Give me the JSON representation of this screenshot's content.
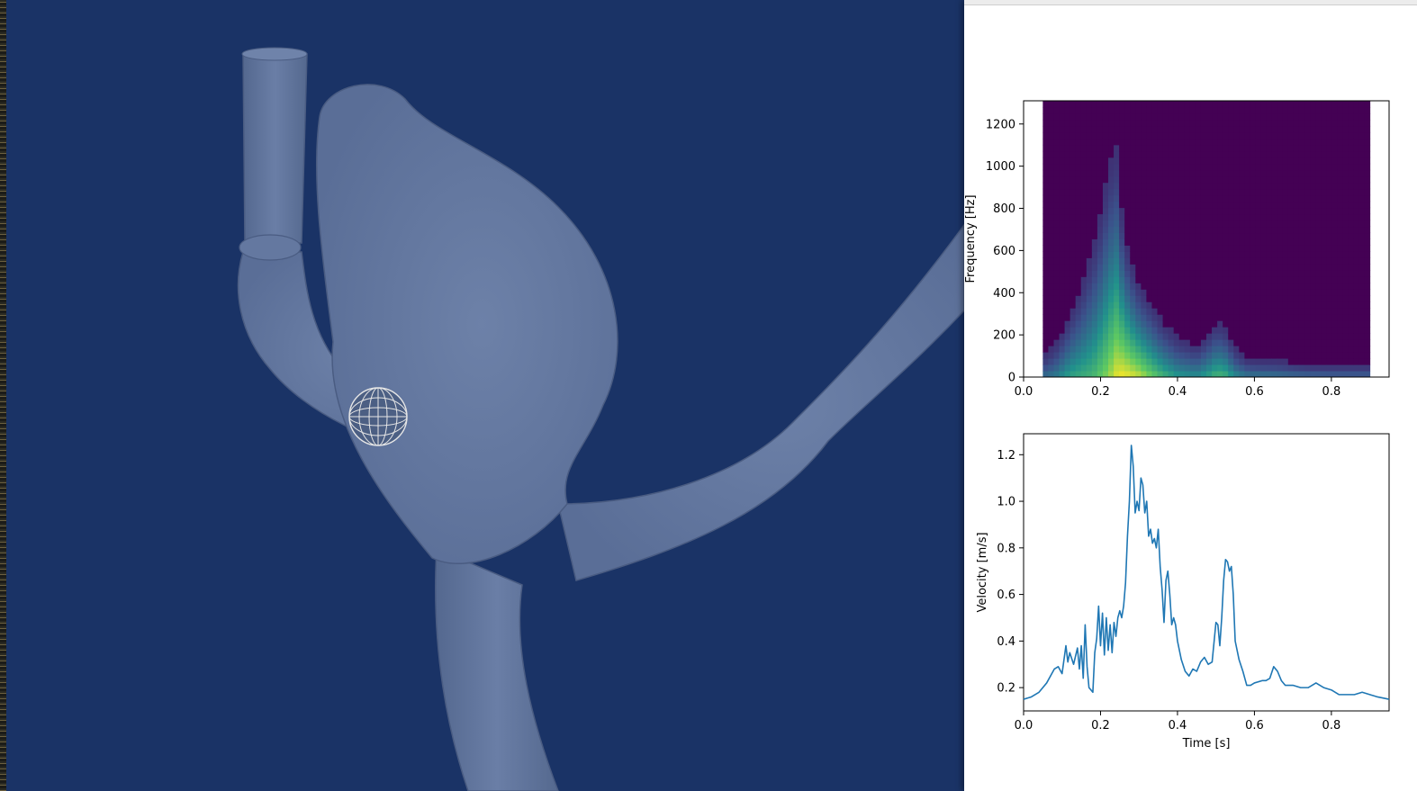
{
  "viewer": {
    "background_color": "#1a3366",
    "surface_color": "#6478a0",
    "probe_widget": "wireframe-sphere"
  },
  "colors": {
    "line": "#1f77b4",
    "spectro_low": "#440154",
    "spectro_mid": "#21918c",
    "spectro_high": "#fde725"
  },
  "chart_data": [
    {
      "type": "heatmap",
      "title": "",
      "xlabel": "",
      "ylabel": "Frequency [Hz]",
      "xlim": [
        0.0,
        0.95
      ],
      "ylim": [
        0,
        1310
      ],
      "data_x_range": [
        0.05,
        0.9
      ],
      "x_ticks": [
        "0.0",
        "0.2",
        "0.4",
        "0.6",
        "0.8"
      ],
      "y_ticks": [
        "0",
        "200",
        "400",
        "600",
        "800",
        "1000",
        "1200"
      ],
      "colormap": "viridis",
      "energy_profile": {
        "t": [
          0.05,
          0.08,
          0.1,
          0.12,
          0.15,
          0.18,
          0.2,
          0.22,
          0.24,
          0.26,
          0.28,
          0.3,
          0.33,
          0.36,
          0.4,
          0.45,
          0.48,
          0.5,
          0.52,
          0.55,
          0.58,
          0.62,
          0.66,
          0.7,
          0.75,
          0.8,
          0.85,
          0.9
        ],
        "max_freq_hz": [
          100,
          150,
          220,
          300,
          430,
          620,
          780,
          1000,
          1120,
          700,
          560,
          450,
          360,
          270,
          190,
          150,
          210,
          260,
          250,
          140,
          90,
          80,
          80,
          70,
          60,
          60,
          60,
          60
        ],
        "intensity": [
          0.25,
          0.3,
          0.4,
          0.5,
          0.55,
          0.6,
          0.7,
          0.8,
          0.95,
          1.0,
          0.95,
          0.9,
          0.75,
          0.6,
          0.45,
          0.4,
          0.5,
          0.6,
          0.6,
          0.4,
          0.3,
          0.3,
          0.28,
          0.25,
          0.22,
          0.2,
          0.2,
          0.2
        ]
      }
    },
    {
      "type": "line",
      "title": "",
      "xlabel": "Time [s]",
      "ylabel": "Velocity [m/s]",
      "xlim": [
        0.0,
        0.95
      ],
      "ylim": [
        0.1,
        1.29
      ],
      "x_ticks": [
        "0.0",
        "0.2",
        "0.4",
        "0.6",
        "0.8"
      ],
      "y_ticks": [
        "0.2",
        "0.4",
        "0.6",
        "0.8",
        "1.0",
        "1.2"
      ],
      "series": [
        {
          "x": [
            0.0,
            0.02,
            0.04,
            0.06,
            0.08,
            0.09,
            0.1,
            0.11,
            0.115,
            0.12,
            0.13,
            0.14,
            0.145,
            0.15,
            0.155,
            0.16,
            0.165,
            0.17,
            0.18,
            0.185,
            0.19,
            0.195,
            0.2,
            0.205,
            0.21,
            0.215,
            0.22,
            0.225,
            0.23,
            0.235,
            0.24,
            0.245,
            0.25,
            0.255,
            0.26,
            0.265,
            0.27,
            0.275,
            0.28,
            0.285,
            0.29,
            0.295,
            0.3,
            0.305,
            0.31,
            0.315,
            0.32,
            0.325,
            0.33,
            0.335,
            0.34,
            0.345,
            0.35,
            0.355,
            0.36,
            0.365,
            0.37,
            0.375,
            0.38,
            0.385,
            0.39,
            0.395,
            0.4,
            0.41,
            0.42,
            0.43,
            0.44,
            0.45,
            0.46,
            0.47,
            0.48,
            0.49,
            0.5,
            0.505,
            0.51,
            0.515,
            0.52,
            0.525,
            0.53,
            0.535,
            0.54,
            0.545,
            0.55,
            0.56,
            0.57,
            0.58,
            0.59,
            0.6,
            0.62,
            0.63,
            0.64,
            0.65,
            0.66,
            0.67,
            0.68,
            0.7,
            0.72,
            0.74,
            0.76,
            0.78,
            0.8,
            0.82,
            0.84,
            0.86,
            0.88,
            0.9,
            0.92,
            0.95
          ],
          "values": [
            0.15,
            0.16,
            0.18,
            0.22,
            0.28,
            0.29,
            0.26,
            0.38,
            0.31,
            0.35,
            0.3,
            0.37,
            0.28,
            0.38,
            0.24,
            0.47,
            0.29,
            0.2,
            0.18,
            0.35,
            0.41,
            0.55,
            0.38,
            0.52,
            0.34,
            0.5,
            0.36,
            0.47,
            0.35,
            0.48,
            0.42,
            0.5,
            0.53,
            0.5,
            0.55,
            0.65,
            0.85,
            1.0,
            1.24,
            1.15,
            0.95,
            1.0,
            0.96,
            1.1,
            1.07,
            0.95,
            1.0,
            0.85,
            0.88,
            0.82,
            0.84,
            0.8,
            0.88,
            0.72,
            0.62,
            0.48,
            0.66,
            0.7,
            0.6,
            0.47,
            0.5,
            0.47,
            0.4,
            0.32,
            0.27,
            0.25,
            0.28,
            0.27,
            0.31,
            0.33,
            0.3,
            0.31,
            0.48,
            0.47,
            0.38,
            0.5,
            0.66,
            0.75,
            0.74,
            0.7,
            0.72,
            0.6,
            0.4,
            0.32,
            0.27,
            0.21,
            0.21,
            0.22,
            0.23,
            0.23,
            0.24,
            0.29,
            0.27,
            0.23,
            0.21,
            0.21,
            0.2,
            0.2,
            0.22,
            0.2,
            0.19,
            0.17,
            0.17,
            0.17,
            0.18,
            0.17,
            0.16,
            0.15
          ]
        }
      ]
    }
  ]
}
